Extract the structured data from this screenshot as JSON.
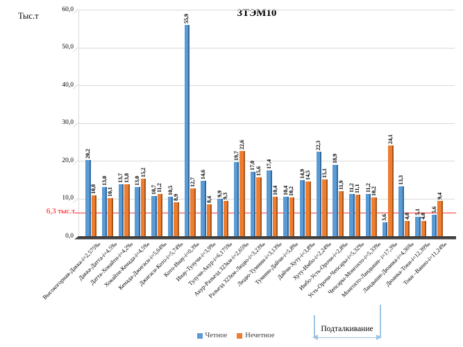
{
  "title": "3ТЭМ10",
  "y_axis": {
    "unit_label": "Тыс.т"
  },
  "reference_line": {
    "label": "6,3 тыс.т",
    "value": 6.3,
    "color": "#ff0000"
  },
  "annotation": {
    "label": "Подталкивание",
    "color": "#9dc3e6"
  },
  "legend": {
    "even_label": "Четное",
    "odd_label": "Нечетное"
  },
  "colors": {
    "even_bar": "#5b9bd5",
    "even_bar_dark": "#31689b",
    "odd_bar": "#ed7d31",
    "odd_bar_dark": "#a85519",
    "gridline": "#d9d9d9",
    "floor": "#404040",
    "ref_line": "#ff2a2a"
  },
  "chart_data": {
    "type": "bar",
    "title": "3ТЭМ10",
    "ylabel": "Тыс.т",
    "ylim": [
      0,
      60
    ],
    "ytick_step": 10,
    "grid": true,
    "legend_position": "bottom",
    "decimal_separator": ",",
    "categories": [
      "Высокогорная-Дакка-i=2,575‰",
      "Дакка-Датта-i=4,5‰",
      "Датта-Хокайти-i=4,2‰",
      "Хокайти-Кенада-i=4,5‰",
      "Кенада-Джигаси-i=5,64‰",
      "Джигаси-Кото-i=5,74‰",
      "Кото-Инау-i=0,3‰",
      "Инау-Тулучи-i=3,9‰",
      "Тулучи-Акур-i=6,175‰",
      "Акур-Разъезд 323км-i=2,65‰",
      "Разъезд 323км-Людю-i=3,23‰",
      "Людю-Тумнин-i=3,13‰",
      "Тумнин-Дайчи-i=5,8‰",
      "Дайчи-Хуту-i=3,8‰",
      "Хуту-Имбо-i=2,24‰",
      "Имбо-Усть-Орочи-i=2,8‰",
      "Усть-Орочи-Чепсары-i=5,32‰",
      "Чепсары-Монгохто-i=5,33‰",
      "Монгохто-Ландыши- i=17,3‰",
      "Ландыши-Дюанка-i=4,36‰",
      "Дюанка-Токи-i=12,39‰",
      "Токи –Ванно-i=11,24‰"
    ],
    "series": [
      {
        "name": "Четное",
        "color": "#5b9bd5",
        "values": [
          20.2,
          13.0,
          13.7,
          13.0,
          10.7,
          10.5,
          55.9,
          14.6,
          9.9,
          19.7,
          17.0,
          17.4,
          10.4,
          14.9,
          22.3,
          18.9,
          11.2,
          11.2,
          3.6,
          13.3,
          5.1,
          5.6
        ]
      },
      {
        "name": "Нечетное",
        "color": "#ed7d31",
        "values": [
          10.8,
          10.1,
          13.8,
          15.2,
          11.2,
          8.9,
          12.7,
          8.4,
          9.3,
          22.6,
          15.6,
          10.4,
          10.2,
          14.5,
          15.1,
          11.9,
          11.1,
          10.2,
          24.1,
          4.0,
          4.0,
          9.4
        ]
      }
    ],
    "reference_line": {
      "value": 6.3,
      "label": "6,3 тыс.т"
    },
    "annotation": {
      "label": "Подталкивание"
    }
  }
}
